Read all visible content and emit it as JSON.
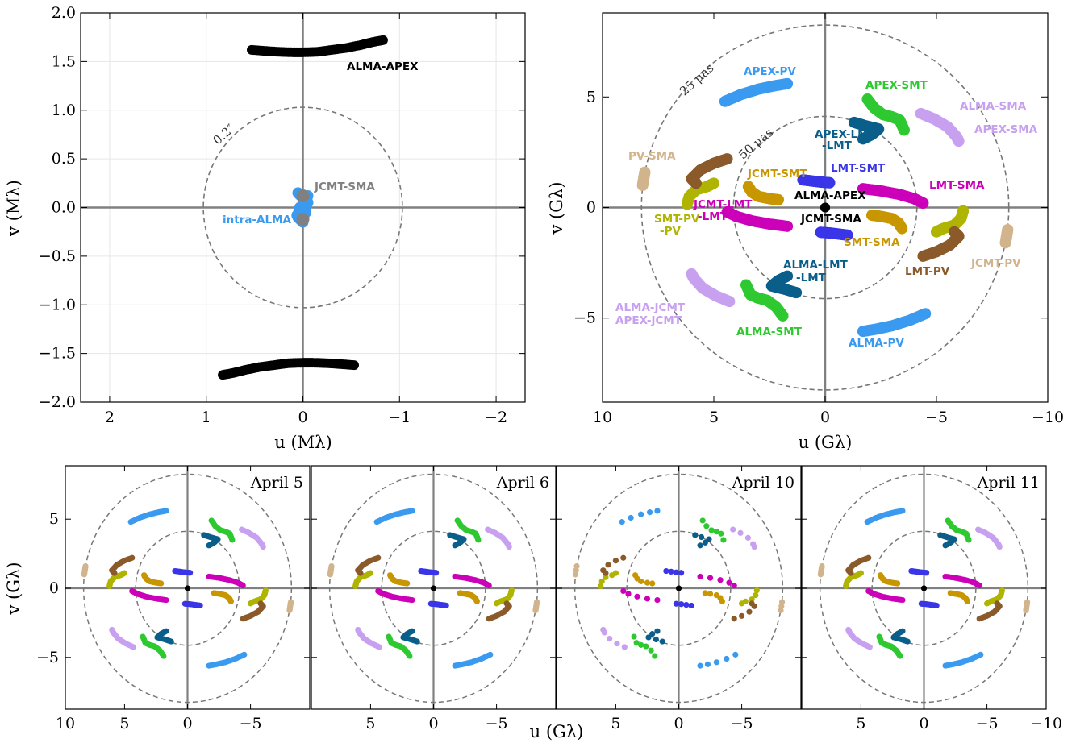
{
  "figure": {
    "panels_small": [
      {
        "label": "April 5"
      },
      {
        "label": "April 6"
      },
      {
        "label": "April 10"
      },
      {
        "label": "April 11"
      }
    ]
  },
  "chart_data": [
    {
      "type": "scatter",
      "panel": "top-left",
      "xlabel": "u (Mλ)",
      "ylabel": "v (Mλ)",
      "xlim": [
        2.3,
        -2.3
      ],
      "ylim": [
        -2.0,
        2.0
      ],
      "xticks": [
        "2",
        "1",
        "0",
        "−1",
        "−2"
      ],
      "yticks": [
        "2.0",
        "1.5",
        "1.0",
        "0.5",
        "0.0",
        "−0.5",
        "−1.0",
        "−1.5",
        "−2.0"
      ],
      "grid": true,
      "circle": {
        "radius": 1.03,
        "label": "0.2″"
      },
      "series": [
        {
          "name": "ALMA-APEX",
          "color": "#000000",
          "points": [
            [
              0.53,
              1.62
            ],
            [
              0.4,
              1.61
            ],
            [
              0.25,
              1.6
            ],
            [
              0.1,
              1.595
            ],
            [
              0,
              1.595
            ],
            [
              -0.15,
              1.6
            ],
            [
              -0.3,
              1.62
            ],
            [
              -0.45,
              1.64
            ],
            [
              -0.6,
              1.67
            ],
            [
              -0.72,
              1.7
            ],
            [
              -0.83,
              1.72
            ]
          ],
          "label": "ALMA-APEX"
        },
        {
          "name": "ALMA-APEX-neg",
          "color": "#000000",
          "points": [
            [
              -0.53,
              -1.62
            ],
            [
              -0.4,
              -1.61
            ],
            [
              -0.25,
              -1.6
            ],
            [
              -0.1,
              -1.595
            ],
            [
              0,
              -1.595
            ],
            [
              0.15,
              -1.6
            ],
            [
              0.3,
              -1.62
            ],
            [
              0.45,
              -1.64
            ],
            [
              0.6,
              -1.67
            ],
            [
              0.72,
              -1.7
            ],
            [
              0.83,
              -1.72
            ]
          ]
        },
        {
          "name": "intra-ALMA",
          "color": "#3a9af0",
          "points": [
            [
              0.05,
              0.15
            ],
            [
              0.0,
              0.1
            ],
            [
              -0.05,
              0.05
            ],
            [
              0.03,
              0.0
            ],
            [
              -0.03,
              -0.05
            ],
            [
              0.05,
              -0.1
            ],
            [
              0.0,
              -0.15
            ],
            [
              -0.05,
              0.12
            ],
            [
              0.06,
              -0.08
            ]
          ],
          "label": "intra-ALMA"
        },
        {
          "name": "JCMT-SMA",
          "color": "#808080",
          "points": [
            [
              0,
              0.12
            ],
            [
              0,
              -0.12
            ]
          ],
          "label": "JCMT-SMA"
        }
      ]
    },
    {
      "type": "scatter",
      "panel": "top-right",
      "xlabel": "u (Gλ)",
      "ylabel": "v (Gλ)",
      "xlim": [
        10,
        -10
      ],
      "ylim": [
        -8.8,
        8.8
      ],
      "xticks": [
        "10",
        "5",
        "0",
        "−5",
        "−10"
      ],
      "yticks": [
        "5",
        "0",
        "−5"
      ],
      "circles": [
        {
          "radius": 4.12,
          "label": "50 μas"
        },
        {
          "radius": 8.25,
          "label": "25 μas"
        }
      ],
      "series": [
        {
          "name": "APEX-PV",
          "color": "#3a9af0",
          "points": [
            [
              4.5,
              4.8
            ],
            [
              3.8,
              5.1
            ],
            [
              3.0,
              5.35
            ],
            [
              2.3,
              5.5
            ],
            [
              1.7,
              5.6
            ]
          ],
          "label": "APEX-PV"
        },
        {
          "name": "ALMA-PV",
          "color": "#3a9af0",
          "points": [
            [
              -4.5,
              -4.8
            ],
            [
              -3.8,
              -5.1
            ],
            [
              -3.0,
              -5.35
            ],
            [
              -2.3,
              -5.5
            ],
            [
              -1.7,
              -5.6
            ]
          ],
          "label": "ALMA-PV"
        },
        {
          "name": "APEX-SMT",
          "color": "#2ec930",
          "points": [
            [
              -1.9,
              4.9
            ],
            [
              -2.2,
              4.5
            ],
            [
              -2.6,
              4.2
            ],
            [
              -3.0,
              4.1
            ],
            [
              -3.35,
              3.95
            ],
            [
              -3.55,
              3.5
            ]
          ],
          "label": "APEX-SMT"
        },
        {
          "name": "ALMA-SMT",
          "color": "#2ec930",
          "points": [
            [
              1.9,
              -4.9
            ],
            [
              2.2,
              -4.5
            ],
            [
              2.6,
              -4.2
            ],
            [
              3.0,
              -4.1
            ],
            [
              3.35,
              -3.95
            ],
            [
              3.55,
              -3.5
            ]
          ],
          "label": "ALMA-SMT"
        },
        {
          "name": "ALMA-SMA",
          "color": "#c8a0f0",
          "points": [
            [
              -4.3,
              4.25
            ],
            [
              -4.9,
              4.0
            ],
            [
              -5.5,
              3.65
            ],
            [
              -5.9,
              3.2
            ],
            [
              -6.0,
              3.0
            ]
          ],
          "label": "ALMA-SMA"
        },
        {
          "name": "ALMA-JCMT",
          "color": "#c8a0f0",
          "points": [
            [
              4.3,
              -4.25
            ],
            [
              4.9,
              -4.0
            ],
            [
              5.5,
              -3.65
            ],
            [
              5.9,
              -3.2
            ],
            [
              6.0,
              -3.0
            ]
          ],
          "label": "ALMA-JCMT"
        },
        {
          "name": "APEX-LMT",
          "color": "#0a5f8a",
          "points": [
            [
              -1.3,
              3.85
            ],
            [
              -1.8,
              3.7
            ],
            [
              -2.4,
              3.55
            ],
            [
              -2.1,
              3.3
            ],
            [
              -1.7,
              3.1
            ]
          ],
          "label": "APEX-LMT"
        },
        {
          "name": "ALMA-LMT",
          "color": "#0a5f8a",
          "points": [
            [
              1.3,
              -3.85
            ],
            [
              1.8,
              -3.7
            ],
            [
              2.4,
              -3.55
            ],
            [
              2.1,
              -3.3
            ],
            [
              1.7,
              -3.1
            ]
          ],
          "label": "ALMA-LMT"
        },
        {
          "name": "PV-SMA",
          "color": "#d2b48c",
          "points": [
            [
              8.1,
              1.6
            ],
            [
              8.15,
              1.3
            ],
            [
              8.2,
              1.0
            ]
          ],
          "label": "PV-SMA"
        },
        {
          "name": "JCMT-PV",
          "color": "#d2b48c",
          "points": [
            [
              -8.1,
              -1.6
            ],
            [
              -8.15,
              -1.3
            ],
            [
              -8.2,
              -1.0
            ]
          ],
          "label": "JCMT-PV"
        },
        {
          "name": "SMT-PV",
          "color": "#aeb400",
          "points": [
            [
              6.2,
              0.15
            ],
            [
              6.1,
              0.5
            ],
            [
              5.8,
              0.8
            ],
            [
              5.3,
              0.95
            ],
            [
              5.0,
              1.1
            ]
          ],
          "label": "SMT-PV"
        },
        {
          "name": "SMT-PV-neg",
          "color": "#aeb400",
          "points": [
            [
              -6.2,
              -0.15
            ],
            [
              -6.1,
              -0.5
            ],
            [
              -5.8,
              -0.8
            ],
            [
              -5.3,
              -0.95
            ],
            [
              -5.0,
              -1.1
            ]
          ]
        },
        {
          "name": "LMT-PV",
          "color": "#8b5a2b",
          "points": [
            [
              4.4,
              2.2
            ],
            [
              5.0,
              2.0
            ],
            [
              5.6,
              1.7
            ],
            [
              6.0,
              1.3
            ],
            [
              5.8,
              1.1
            ]
          ],
          "label": "LMT-PV"
        },
        {
          "name": "LMT-PV-neg",
          "color": "#8b5a2b",
          "points": [
            [
              -4.4,
              -2.2
            ],
            [
              -5.0,
              -2.0
            ],
            [
              -5.6,
              -1.7
            ],
            [
              -6.0,
              -1.3
            ],
            [
              -5.8,
              -1.1
            ]
          ]
        },
        {
          "name": "LMT-SMA",
          "color": "#cc00b8",
          "points": [
            [
              -1.7,
              0.85
            ],
            [
              -2.5,
              0.75
            ],
            [
              -3.3,
              0.6
            ],
            [
              -4.0,
              0.4
            ],
            [
              -4.4,
              0.2
            ]
          ],
          "label": "LMT-SMA"
        },
        {
          "name": "JCMT-LMT",
          "color": "#cc00b8",
          "points": [
            [
              1.7,
              -0.85
            ],
            [
              2.5,
              -0.75
            ],
            [
              3.3,
              -0.6
            ],
            [
              4.0,
              -0.4
            ],
            [
              4.4,
              -0.2
            ]
          ],
          "label": "JCMT-LMT"
        },
        {
          "name": "JCMT-SMT",
          "color": "#c89600",
          "points": [
            [
              3.45,
              0.95
            ],
            [
              3.3,
              0.7
            ],
            [
              3.0,
              0.5
            ],
            [
              2.5,
              0.4
            ],
            [
              2.1,
              0.35
            ]
          ],
          "label": "JCMT-SMT"
        },
        {
          "name": "SMT-SMA",
          "color": "#c89600",
          "points": [
            [
              -3.45,
              -0.95
            ],
            [
              -3.3,
              -0.7
            ],
            [
              -3.0,
              -0.5
            ],
            [
              -2.5,
              -0.4
            ],
            [
              -2.1,
              -0.35
            ]
          ],
          "label": "SMT-SMA"
        },
        {
          "name": "LMT-SMT",
          "color": "#3a35e8",
          "points": [
            [
              1.0,
              1.25
            ],
            [
              0.6,
              1.2
            ],
            [
              0.2,
              1.15
            ],
            [
              -0.2,
              1.12
            ]
          ],
          "label": "LMT-SMT"
        },
        {
          "name": "LMT-SMT-neg",
          "color": "#3a35e8",
          "points": [
            [
              -1.0,
              -1.25
            ],
            [
              -0.6,
              -1.2
            ],
            [
              -0.2,
              -1.15
            ],
            [
              0.2,
              -1.12
            ]
          ]
        },
        {
          "name": "ALMA-APEX",
          "color": "#000000",
          "points": [
            [
              0,
              0
            ]
          ],
          "label": "ALMA-APEX"
        },
        {
          "name": "JCMT-SMA",
          "color": "#000000",
          "points": [
            [
              0,
              0
            ]
          ],
          "label": "JCMT-SMA"
        }
      ]
    }
  ],
  "small_panels_axes": {
    "xlabel": "u (Gλ)",
    "ylabel": "v (Gλ)",
    "xticks_first": [
      "10",
      "5",
      "0",
      "−5"
    ],
    "xticks_mid": [
      "5",
      "0",
      "−5"
    ],
    "xticks_last": [
      "5",
      "0",
      "−5",
      "−10"
    ],
    "yticks": [
      "5",
      "0",
      "−5"
    ]
  }
}
